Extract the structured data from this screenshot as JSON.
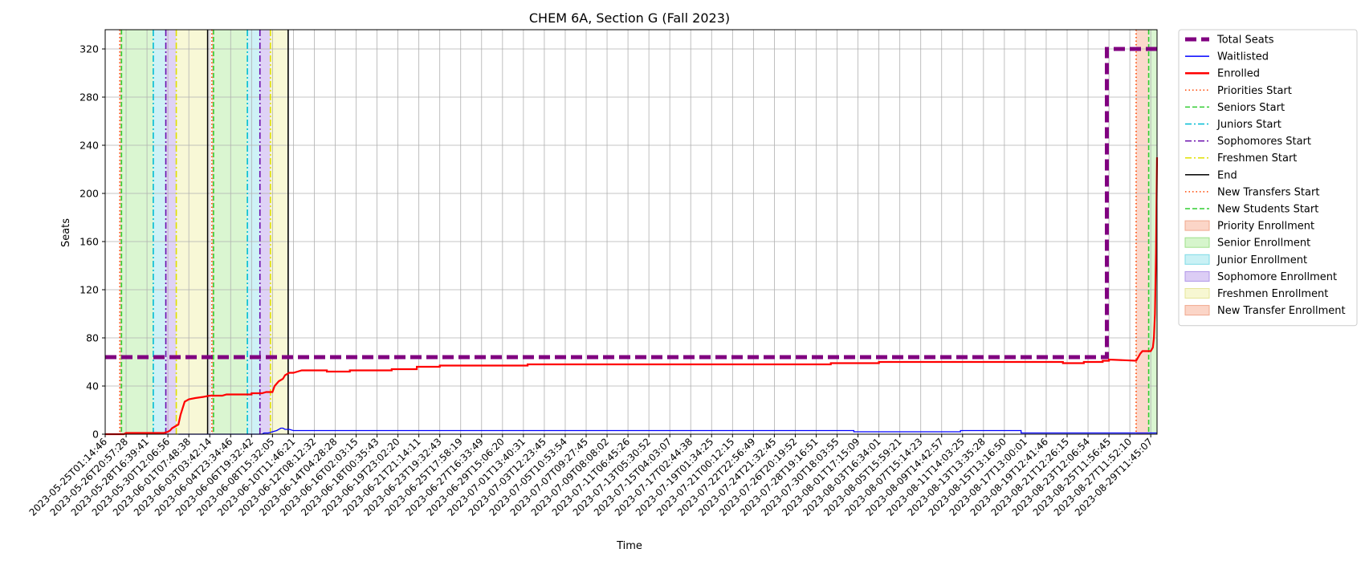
{
  "chart_data": {
    "type": "line",
    "title": "CHEM 6A, Section G (Fall 2023)",
    "xlabel": "Time",
    "ylabel": "Seats",
    "ylim": [
      0,
      336
    ],
    "yticks": [
      0,
      40,
      80,
      120,
      160,
      200,
      240,
      280,
      320
    ],
    "grid": true,
    "legend_position": "outside-right",
    "x_tick_labels": [
      "2023-05-25T01:14:46",
      "2023-05-26T20:57:28",
      "2023-05-28T16:39:41",
      "2023-05-30T12:06:56",
      "2023-06-01T07:48:38",
      "2023-06-03T03:42:14",
      "2023-06-04T23:34:46",
      "2023-06-06T19:32:42",
      "2023-06-08T15:32:05",
      "2023-06-10T11:46:21",
      "2023-06-12T08:12:32",
      "2023-06-14T04:28:28",
      "2023-06-16T02:03:15",
      "2023-06-18T00:35:43",
      "2023-06-19T23:02:20",
      "2023-06-21T21:14:11",
      "2023-06-23T19:32:43",
      "2023-06-25T17:58:19",
      "2023-06-27T16:33:49",
      "2023-06-29T15:06:20",
      "2023-07-01T13:40:31",
      "2023-07-03T12:23:45",
      "2023-07-05T10:53:54",
      "2023-07-07T09:27:45",
      "2023-07-09T08:08:02",
      "2023-07-11T06:45:26",
      "2023-07-13T05:30:52",
      "2023-07-15T04:03:07",
      "2023-07-17T02:44:38",
      "2023-07-19T01:34:25",
      "2023-07-21T00:12:15",
      "2023-07-22T22:56:49",
      "2023-07-24T21:32:45",
      "2023-07-26T20:19:52",
      "2023-07-28T19:16:51",
      "2023-07-30T18:03:55",
      "2023-08-01T17:15:09",
      "2023-08-03T16:34:01",
      "2023-08-05T15:59:21",
      "2023-08-07T15:14:23",
      "2023-08-09T14:42:57",
      "2023-08-11T14:03:25",
      "2023-08-13T13:35:28",
      "2023-08-15T13:16:50",
      "2023-08-17T13:00:01",
      "2023-08-19T12:41:46",
      "2023-08-21T12:26:15",
      "2023-08-23T12:06:54",
      "2023-08-25T11:56:45",
      "2023-08-27T11:52:10",
      "2023-08-29T11:45:07"
    ],
    "x_range": [
      0,
      50.3
    ],
    "series": [
      {
        "name": "Total Seats",
        "style": "dashed",
        "color": "#800080",
        "x": [
          0,
          47.9,
          47.9,
          50.3
        ],
        "y": [
          64,
          64,
          320,
          320
        ]
      },
      {
        "name": "Waitlisted",
        "style": "solid",
        "color": "#0000ff",
        "x": [
          3.5,
          7.5,
          7.6,
          7.7,
          7.8,
          8.0,
          8.2,
          8.4,
          8.5,
          8.6,
          8.8,
          9.0,
          9.2,
          9.4,
          35.8,
          35.8,
          40.9,
          40.9,
          43.8,
          43.8,
          50.3
        ],
        "y": [
          0,
          0,
          1,
          1,
          1,
          2,
          3,
          5,
          5,
          4,
          4,
          3,
          3,
          3,
          3,
          2,
          2,
          3,
          3,
          1,
          1
        ]
      },
      {
        "name": "Enrolled",
        "style": "solid",
        "color": "#ff0000",
        "x": [
          0,
          0.9,
          1.0,
          2.2,
          2.8,
          3.0,
          3.1,
          3.2,
          3.4,
          3.5,
          3.6,
          3.8,
          4.0,
          4.3,
          4.7,
          5.0,
          5.6,
          5.8,
          6.0,
          7.0,
          7.0,
          7.2,
          7.3,
          7.4,
          7.5,
          7.7,
          7.8,
          7.9,
          8.0,
          8.1,
          8.2,
          8.3,
          8.4,
          8.5,
          8.6,
          8.8,
          9.0,
          9.2,
          9.4,
          10.6,
          10.6,
          11.7,
          11.7,
          13.7,
          13.7,
          14.9,
          14.9,
          16.0,
          16.0,
          20.2,
          20.2,
          29.6,
          29.6,
          34.7,
          34.7,
          37.0,
          37.0,
          45.8,
          45.8,
          46.8,
          46.8,
          47.7,
          47.7,
          48.0,
          48.0,
          49.3,
          49.3,
          49.4,
          49.5,
          49.6,
          49.7,
          49.9,
          50.0,
          50.1,
          50.15,
          50.2,
          50.25,
          50.3
        ],
        "y": [
          0,
          0,
          1,
          1,
          1,
          2,
          3,
          5,
          7,
          8,
          16,
          27,
          29,
          30,
          31,
          32,
          32,
          33,
          33,
          33,
          34,
          34,
          34,
          34,
          34,
          35,
          35,
          35,
          35,
          40,
          42,
          44,
          45,
          46,
          49,
          51,
          51,
          52,
          53,
          53,
          52,
          52,
          53,
          53,
          54,
          54,
          56,
          56,
          57,
          57,
          58,
          58,
          58,
          58,
          59,
          59,
          60,
          60,
          59,
          59,
          60,
          60,
          61,
          61,
          62,
          61,
          61,
          64,
          67,
          69,
          69,
          69,
          69,
          72,
          80,
          100,
          150,
          230
        ]
      }
    ],
    "vertical_lines": [
      {
        "name": "Priorities Start",
        "x": 0.7,
        "color": "#ff4500",
        "style": "dotted"
      },
      {
        "name": "Seniors Start",
        "x": 0.78,
        "color": "#32cd32",
        "style": "dashed"
      },
      {
        "name": "Juniors Start",
        "x": 2.3,
        "color": "#00bcd4",
        "style": "dashdot"
      },
      {
        "name": "Sophomores Start",
        "x": 2.9,
        "color": "#6a0dad",
        "style": "dashdot"
      },
      {
        "name": "Freshmen Start",
        "x": 3.4,
        "color": "#e0e000",
        "style": "dashdot"
      },
      {
        "name": "End",
        "x": 4.9,
        "color": "#000000",
        "style": "solid"
      },
      {
        "name": "Priorities Start",
        "x": 5.1,
        "color": "#ff4500",
        "style": "dotted"
      },
      {
        "name": "Seniors Start",
        "x": 5.18,
        "color": "#32cd32",
        "style": "dashed"
      },
      {
        "name": "Juniors Start",
        "x": 6.8,
        "color": "#00bcd4",
        "style": "dashdot"
      },
      {
        "name": "Sophomores Start",
        "x": 7.4,
        "color": "#6a0dad",
        "style": "dashdot"
      },
      {
        "name": "Freshmen Start",
        "x": 7.9,
        "color": "#e0e000",
        "style": "dashdot"
      },
      {
        "name": "End",
        "x": 8.75,
        "color": "#000000",
        "style": "solid"
      },
      {
        "name": "New Transfers Start",
        "x": 49.3,
        "color": "#ff4500",
        "style": "dotted"
      },
      {
        "name": "New Students Start",
        "x": 49.9,
        "color": "#32cd32",
        "style": "dashed"
      }
    ],
    "shaded_regions": [
      {
        "name": "Priority Enrollment",
        "x0": 0.7,
        "x1": 0.78,
        "color": "#fbd5c7"
      },
      {
        "name": "Senior Enrollment",
        "x0": 0.78,
        "x1": 2.3,
        "color": "#d6f5cc"
      },
      {
        "name": "Junior Enrollment",
        "x0": 2.3,
        "x1": 2.9,
        "color": "#c9f1f5"
      },
      {
        "name": "Sophomore Enrollment",
        "x0": 2.9,
        "x1": 3.4,
        "color": "#dccdf5"
      },
      {
        "name": "Freshmen Enrollment",
        "x0": 3.4,
        "x1": 4.9,
        "color": "#f7f7d2"
      },
      {
        "name": "Priority Enrollment",
        "x0": 5.1,
        "x1": 5.18,
        "color": "#fbd5c7"
      },
      {
        "name": "Senior Enrollment",
        "x0": 5.18,
        "x1": 6.8,
        "color": "#d6f5cc"
      },
      {
        "name": "Junior Enrollment",
        "x0": 6.8,
        "x1": 7.4,
        "color": "#c9f1f5"
      },
      {
        "name": "Sophomore Enrollment",
        "x0": 7.4,
        "x1": 7.9,
        "color": "#dccdf5"
      },
      {
        "name": "Freshmen Enrollment",
        "x0": 7.9,
        "x1": 8.75,
        "color": "#f7f7d2"
      },
      {
        "name": "New Transfer Enrollment",
        "x0": 49.3,
        "x1": 49.9,
        "color": "#fbd5c7"
      },
      {
        "name": "Senior Enrollment",
        "x0": 49.9,
        "x1": 50.3,
        "color": "#d6f5cc"
      }
    ],
    "legend": [
      {
        "label": "Total Seats",
        "kind": "line",
        "color": "#800080",
        "style": "dashed-thick"
      },
      {
        "label": "Waitlisted",
        "kind": "line",
        "color": "#0000ff",
        "style": "solid"
      },
      {
        "label": "Enrolled",
        "kind": "line",
        "color": "#ff0000",
        "style": "solid-thick"
      },
      {
        "label": "Priorities Start",
        "kind": "line",
        "color": "#ff4500",
        "style": "dotted"
      },
      {
        "label": "Seniors Start",
        "kind": "line",
        "color": "#32cd32",
        "style": "dashed"
      },
      {
        "label": "Juniors Start",
        "kind": "line",
        "color": "#00bcd4",
        "style": "dashdot"
      },
      {
        "label": "Sophomores Start",
        "kind": "line",
        "color": "#6a0dad",
        "style": "dashdot"
      },
      {
        "label": "Freshmen Start",
        "kind": "line",
        "color": "#e0e000",
        "style": "dashdot"
      },
      {
        "label": "End",
        "kind": "line",
        "color": "#000000",
        "style": "solid"
      },
      {
        "label": "New Transfers Start",
        "kind": "line",
        "color": "#ff4500",
        "style": "dotted"
      },
      {
        "label": "New Students Start",
        "kind": "line",
        "color": "#32cd32",
        "style": "dashed"
      },
      {
        "label": "Priority Enrollment",
        "kind": "patch",
        "color": "#fbd5c7",
        "edge": "#f0a88e"
      },
      {
        "label": "Senior Enrollment",
        "kind": "patch",
        "color": "#d6f5cc",
        "edge": "#9fe08a"
      },
      {
        "label": "Junior Enrollment",
        "kind": "patch",
        "color": "#c9f1f5",
        "edge": "#7fdbe6"
      },
      {
        "label": "Sophomore Enrollment",
        "kind": "patch",
        "color": "#dccdf5",
        "edge": "#b197e8"
      },
      {
        "label": "Freshmen Enrollment",
        "kind": "patch",
        "color": "#f7f7d2",
        "edge": "#e5e59a"
      },
      {
        "label": "New Transfer Enrollment",
        "kind": "patch",
        "color": "#fbd5c7",
        "edge": "#f0a88e"
      }
    ]
  }
}
